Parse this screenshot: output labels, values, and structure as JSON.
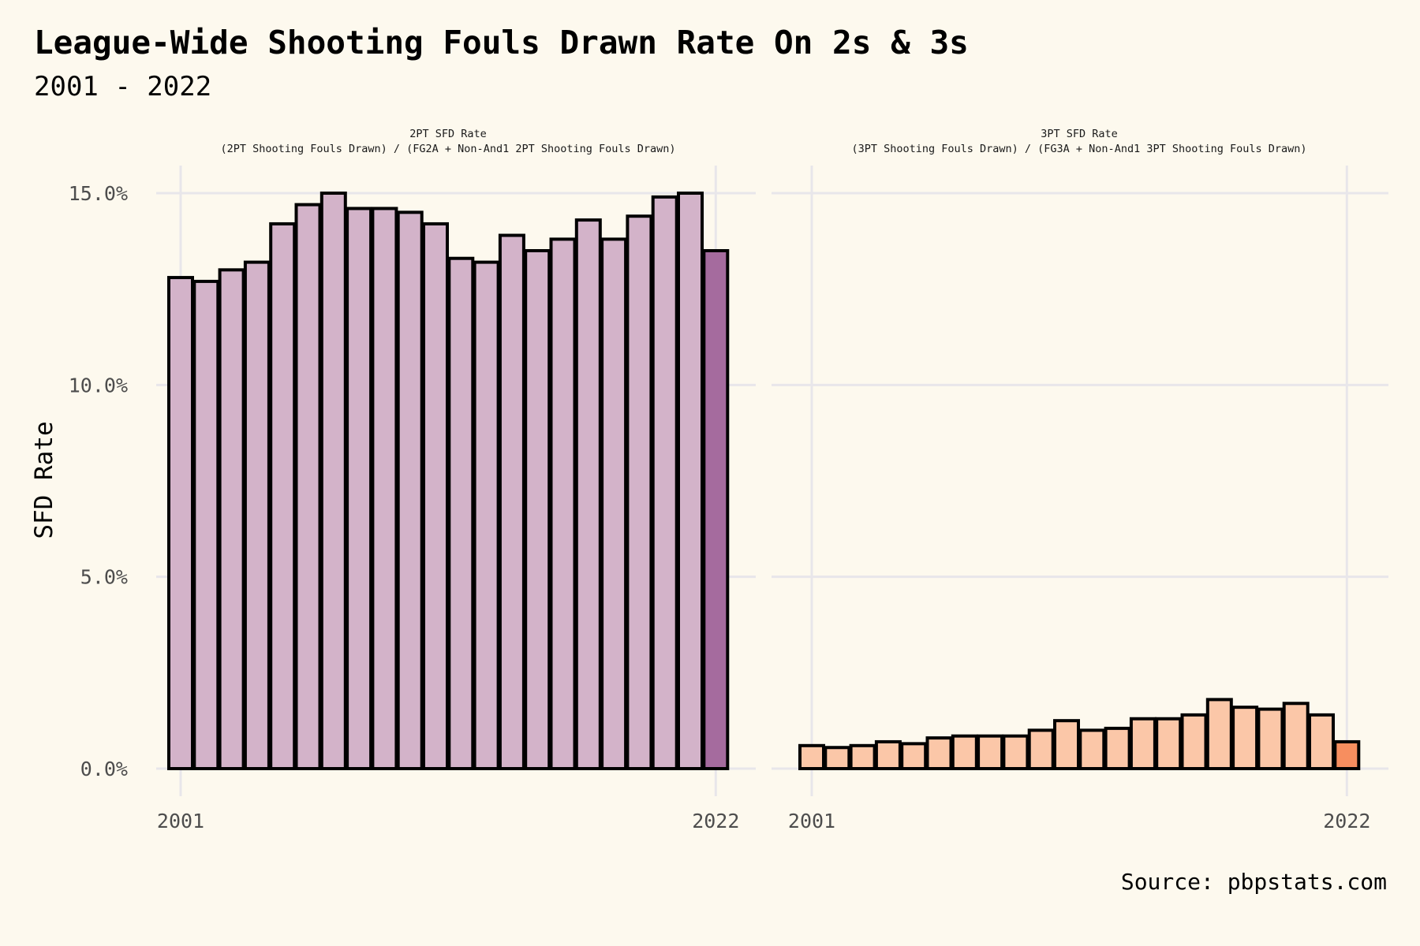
{
  "title": "League-Wide Shooting Fouls Drawn Rate On 2s & 3s",
  "subtitle": "2001 - 2022",
  "source": "Source: pbpstats.com",
  "colors": {
    "background": "#fdf9ee",
    "grid": "#e8e6ea",
    "outline": "#000000",
    "two_pt_bar": "#d3b3c9",
    "two_pt_highlight": "#a56b9e",
    "three_pt_bar": "#fbc7a8",
    "three_pt_highlight": "#f78e5f"
  },
  "chart_data": [
    {
      "type": "bar",
      "panel_title": "2PT SFD Rate",
      "panel_subtitle": "(2PT Shooting Fouls Drawn) / (FG2A + Non-And1 2PT Shooting Fouls Drawn)",
      "ylabel": "SFD Rate",
      "xlabel": "",
      "ylim": [
        0,
        15.0
      ],
      "y_ticks": [
        "0.0%",
        "5.0%",
        "10.0%",
        "15.0%"
      ],
      "x_ticks": [
        "2001",
        "2022"
      ],
      "categories": [
        "2001",
        "2002",
        "2003",
        "2004",
        "2005",
        "2006",
        "2007",
        "2008",
        "2009",
        "2010",
        "2011",
        "2012",
        "2013",
        "2014",
        "2015",
        "2016",
        "2017",
        "2018",
        "2019",
        "2020",
        "2021",
        "2022"
      ],
      "values": [
        12.8,
        12.7,
        13.0,
        13.2,
        14.2,
        14.7,
        15.0,
        14.6,
        14.6,
        14.5,
        14.2,
        13.3,
        13.2,
        13.9,
        13.5,
        13.8,
        14.3,
        13.8,
        14.4,
        14.9,
        15.0,
        13.5
      ],
      "highlight": "2022",
      "grid": true,
      "legend": "none"
    },
    {
      "type": "bar",
      "panel_title": "3PT SFD Rate",
      "panel_subtitle": "(3PT Shooting Fouls Drawn) / (FG3A + Non-And1 3PT Shooting Fouls Drawn)",
      "ylabel": "SFD Rate",
      "xlabel": "",
      "ylim": [
        0,
        15.0
      ],
      "y_ticks": [
        "0.0%",
        "5.0%",
        "10.0%",
        "15.0%"
      ],
      "x_ticks": [
        "2001",
        "2022"
      ],
      "categories": [
        "2001",
        "2002",
        "2003",
        "2004",
        "2005",
        "2006",
        "2007",
        "2008",
        "2009",
        "2010",
        "2011",
        "2012",
        "2013",
        "2014",
        "2015",
        "2016",
        "2017",
        "2018",
        "2019",
        "2020",
        "2021",
        "2022"
      ],
      "values": [
        0.6,
        0.55,
        0.6,
        0.7,
        0.65,
        0.8,
        0.85,
        0.85,
        0.85,
        1.0,
        1.25,
        1.0,
        1.05,
        1.3,
        1.3,
        1.4,
        1.8,
        1.6,
        1.55,
        1.7,
        1.4,
        0.7
      ],
      "highlight": "2022",
      "grid": true,
      "legend": "none"
    }
  ]
}
